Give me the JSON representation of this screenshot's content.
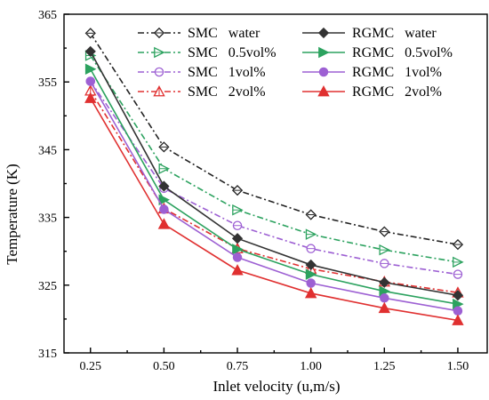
{
  "chart_data": {
    "type": "line",
    "title": "",
    "xlabel": "Inlet velocity (u,m/s)",
    "ylabel": "Temperature (K)",
    "xlim": [
      0.16,
      1.6
    ],
    "ylim": [
      315,
      365
    ],
    "x_ticks": [
      "0.25",
      "0.50",
      "0.75",
      "1.00",
      "1.25",
      "1.50"
    ],
    "y_ticks": [
      "315",
      "325",
      "335",
      "345",
      "355",
      "365"
    ],
    "x": [
      0.25,
      0.5,
      0.75,
      1.0,
      1.25,
      1.5
    ],
    "grid": false,
    "legend_position": "top-right",
    "series": [
      {
        "name": "SMC   water",
        "color": "#222222",
        "dash": "dashdot",
        "marker": "diamond",
        "filled": false,
        "values": [
          362.2,
          345.4,
          339.0,
          335.4,
          332.9,
          331.0
        ]
      },
      {
        "name": "SMC   0.5vol%",
        "color": "#2ca25f",
        "dash": "dashdot",
        "marker": "triangle-right",
        "filled": false,
        "values": [
          358.9,
          342.2,
          336.1,
          332.5,
          330.2,
          328.4
        ]
      },
      {
        "name": "SMC   1vol%",
        "color": "#9d60d3",
        "dash": "dashdot",
        "marker": "circle",
        "filled": false,
        "values": [
          355.1,
          339.3,
          333.8,
          330.4,
          328.2,
          326.6
        ]
      },
      {
        "name": "SMC   2vol%",
        "color": "#e03030",
        "dash": "dashdot",
        "marker": "triangle-up",
        "filled": false,
        "values": [
          353.7,
          336.3,
          330.4,
          327.4,
          325.5,
          323.9
        ]
      },
      {
        "name": "RGMC   water",
        "color": "#333333",
        "dash": "solid",
        "marker": "diamond",
        "filled": true,
        "values": [
          359.5,
          339.6,
          331.9,
          328.0,
          325.4,
          323.5
        ]
      },
      {
        "name": "RGMC   0.5vol%",
        "color": "#2ca25f",
        "dash": "solid",
        "marker": "triangle-right",
        "filled": true,
        "values": [
          356.9,
          337.6,
          330.3,
          326.6,
          324.1,
          322.2
        ]
      },
      {
        "name": "RGMC   1vol%",
        "color": "#9d60d3",
        "dash": "solid",
        "marker": "circle",
        "filled": true,
        "values": [
          355.1,
          336.2,
          329.1,
          325.3,
          323.1,
          321.2
        ]
      },
      {
        "name": "RGMC   2vol%",
        "color": "#e03030",
        "dash": "solid",
        "marker": "triangle-up",
        "filled": true,
        "values": [
          352.6,
          334.0,
          327.2,
          323.8,
          321.6,
          319.8
        ]
      }
    ]
  }
}
